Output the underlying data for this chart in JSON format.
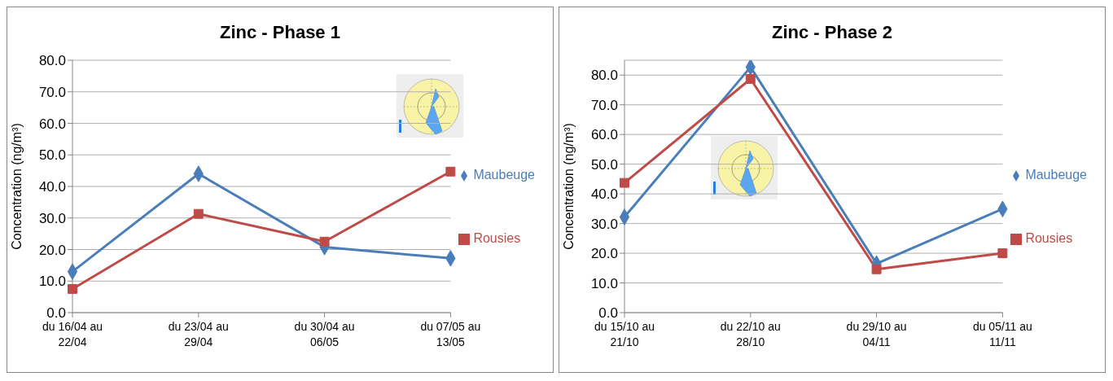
{
  "chart_data": [
    {
      "type": "line",
      "title": "Zinc - Phase 1",
      "ylabel": "Concentration (ng/m³)",
      "categories": [
        "du 16/04 au 22/04",
        "du 23/04 au 29/04",
        "du 30/04 au 06/05",
        "du 07/05 au 13/05"
      ],
      "series": [
        {
          "name": "Maubeuge",
          "color": "#4a7ebb",
          "marker": "diamond",
          "values": [
            13.0,
            44.0,
            20.8,
            17.2
          ]
        },
        {
          "name": "Rousies",
          "color": "#be4b48",
          "marker": "square",
          "values": [
            7.5,
            31.3,
            22.5,
            44.7
          ]
        }
      ],
      "ylim": [
        0,
        80
      ],
      "yticks": [
        {
          "value": 0,
          "label": "0.0"
        },
        {
          "value": 10,
          "label": "10.0"
        },
        {
          "value": 20,
          "label": "20.0"
        },
        {
          "value": 30,
          "label": "30.0"
        },
        {
          "value": 40,
          "label": "40.0"
        },
        {
          "value": 50,
          "label": "50.0"
        },
        {
          "value": 60,
          "label": "60.0"
        },
        {
          "value": 70,
          "label": "70.0"
        },
        {
          "value": 80,
          "label": "80.0"
        }
      ],
      "grid": "y",
      "legend": "right"
    },
    {
      "type": "line",
      "title": "Zinc - Phase 2",
      "ylabel": "Concentration (ng/m³)",
      "categories": [
        "du 15/10 au 21/10",
        "du 22/10 au 28/10",
        "du 29/10 au 04/11",
        "du 05/11 au 11/11"
      ],
      "series": [
        {
          "name": "Maubeuge",
          "color": "#4a7ebb",
          "marker": "diamond",
          "values": [
            32.2,
            82.7,
            16.5,
            34.9
          ]
        },
        {
          "name": "Rousies",
          "color": "#be4b48",
          "marker": "square",
          "values": [
            43.7,
            78.7,
            14.6,
            20.0
          ]
        }
      ],
      "ylim": [
        0,
        85
      ],
      "yticks": [
        {
          "value": 0,
          "label": "0.0"
        },
        {
          "value": 10,
          "label": "10.0"
        },
        {
          "value": 20,
          "label": "20.0"
        },
        {
          "value": 30,
          "label": "30.0"
        },
        {
          "value": 40,
          "label": "40.0"
        },
        {
          "value": 50,
          "label": "50.0"
        },
        {
          "value": 60,
          "label": "60.0"
        },
        {
          "value": 70,
          "label": "70.0"
        },
        {
          "value": 80,
          "label": "80.0"
        }
      ],
      "grid": "y",
      "legend": "right"
    }
  ]
}
